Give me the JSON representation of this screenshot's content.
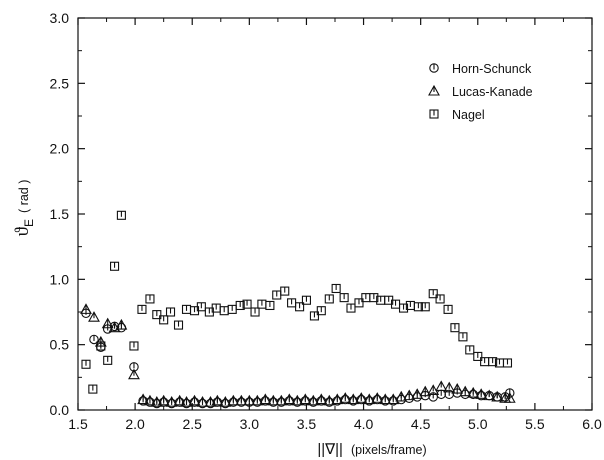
{
  "chart_data": {
    "type": "scatter",
    "xlabel": "||∇|| (pixels/frame)",
    "xlabel_main": "||∇||",
    "xlabel_unit": "(pixels/frame)",
    "ylabel": "ϑE (rad)",
    "ylabel_symbol": "ϑ",
    "ylabel_sub": "E",
    "ylabel_unit": "( rad )",
    "xlim": [
      1.5,
      6.0
    ],
    "ylim": [
      0.0,
      3.0
    ],
    "xticks": [
      "1.5",
      "2.0",
      "2.5",
      "3.0",
      "3.5",
      "4.0",
      "4.5",
      "5.0",
      "5.5",
      "6.0"
    ],
    "yticks": [
      "0.0",
      "0.5",
      "1.0",
      "1.5",
      "2.0",
      "2.5",
      "3.0"
    ],
    "grid": false,
    "legend_position": "top-right",
    "series": [
      {
        "name": "Horn-Schunck",
        "marker": "circle",
        "x": [
          1.57,
          1.64,
          1.7,
          1.76,
          1.82,
          1.88,
          1.99,
          2.07,
          2.13,
          2.19,
          2.25,
          2.32,
          2.39,
          2.45,
          2.52,
          2.59,
          2.66,
          2.72,
          2.79,
          2.86,
          2.93,
          3.0,
          3.07,
          3.14,
          3.21,
          3.28,
          3.35,
          3.42,
          3.49,
          3.56,
          3.63,
          3.7,
          3.77,
          3.84,
          3.91,
          3.98,
          4.05,
          4.12,
          4.19,
          4.26,
          4.33,
          4.4,
          4.47,
          4.54,
          4.61,
          4.68,
          4.75,
          4.82,
          4.89,
          4.96,
          5.03,
          5.1,
          5.17,
          5.24,
          5.28
        ],
        "y": [
          0.74,
          0.54,
          0.48,
          0.62,
          0.64,
          0.63,
          0.33,
          0.07,
          0.06,
          0.05,
          0.06,
          0.05,
          0.06,
          0.05,
          0.06,
          0.05,
          0.05,
          0.06,
          0.05,
          0.06,
          0.06,
          0.06,
          0.06,
          0.07,
          0.06,
          0.06,
          0.07,
          0.06,
          0.07,
          0.06,
          0.07,
          0.06,
          0.07,
          0.08,
          0.07,
          0.08,
          0.07,
          0.08,
          0.07,
          0.07,
          0.08,
          0.09,
          0.1,
          0.11,
          0.1,
          0.12,
          0.12,
          0.13,
          0.12,
          0.12,
          0.11,
          0.11,
          0.1,
          0.1,
          0.13
        ]
      },
      {
        "name": "Lucas-Kanade",
        "marker": "triangle",
        "x": [
          1.57,
          1.64,
          1.7,
          1.76,
          1.82,
          1.88,
          1.99,
          2.07,
          2.13,
          2.19,
          2.25,
          2.32,
          2.39,
          2.45,
          2.52,
          2.59,
          2.66,
          2.72,
          2.79,
          2.86,
          2.93,
          3.0,
          3.07,
          3.14,
          3.21,
          3.28,
          3.35,
          3.42,
          3.49,
          3.56,
          3.63,
          3.7,
          3.77,
          3.84,
          3.91,
          3.98,
          4.05,
          4.12,
          4.19,
          4.26,
          4.33,
          4.4,
          4.47,
          4.54,
          4.61,
          4.68,
          4.75,
          4.82,
          4.89,
          4.96,
          5.03,
          5.1,
          5.17,
          5.24,
          5.28
        ],
        "y": [
          0.77,
          0.71,
          0.52,
          0.66,
          0.63,
          0.65,
          0.27,
          0.08,
          0.07,
          0.06,
          0.07,
          0.06,
          0.07,
          0.06,
          0.07,
          0.06,
          0.06,
          0.07,
          0.06,
          0.07,
          0.07,
          0.07,
          0.07,
          0.08,
          0.07,
          0.07,
          0.08,
          0.07,
          0.08,
          0.07,
          0.08,
          0.07,
          0.08,
          0.09,
          0.08,
          0.09,
          0.08,
          0.09,
          0.08,
          0.08,
          0.1,
          0.11,
          0.12,
          0.14,
          0.15,
          0.18,
          0.17,
          0.16,
          0.14,
          0.13,
          0.12,
          0.11,
          0.1,
          0.09,
          0.09
        ]
      },
      {
        "name": "Nagel",
        "marker": "square",
        "x": [
          1.57,
          1.63,
          1.7,
          1.76,
          1.82,
          1.88,
          1.99,
          2.06,
          2.13,
          2.19,
          2.25,
          2.31,
          2.38,
          2.45,
          2.52,
          2.58,
          2.65,
          2.71,
          2.78,
          2.85,
          2.92,
          2.98,
          3.05,
          3.11,
          3.18,
          3.24,
          3.31,
          3.37,
          3.44,
          3.5,
          3.57,
          3.63,
          3.7,
          3.76,
          3.83,
          3.89,
          3.96,
          4.02,
          4.09,
          4.15,
          4.22,
          4.28,
          4.35,
          4.41,
          4.48,
          4.54,
          4.61,
          4.67,
          4.74,
          4.8,
          4.87,
          4.93,
          5.0,
          5.06,
          5.13,
          5.19,
          5.26
        ],
        "y": [
          0.35,
          0.16,
          0.49,
          0.38,
          1.1,
          1.49,
          0.49,
          0.77,
          0.85,
          0.73,
          0.69,
          0.75,
          0.65,
          0.77,
          0.76,
          0.79,
          0.75,
          0.78,
          0.76,
          0.77,
          0.8,
          0.81,
          0.75,
          0.81,
          0.8,
          0.88,
          0.91,
          0.82,
          0.79,
          0.84,
          0.72,
          0.76,
          0.85,
          0.93,
          0.86,
          0.78,
          0.82,
          0.86,
          0.86,
          0.84,
          0.84,
          0.81,
          0.78,
          0.8,
          0.79,
          0.79,
          0.89,
          0.85,
          0.77,
          0.63,
          0.56,
          0.46,
          0.41,
          0.37,
          0.37,
          0.36,
          0.36
        ]
      }
    ]
  }
}
